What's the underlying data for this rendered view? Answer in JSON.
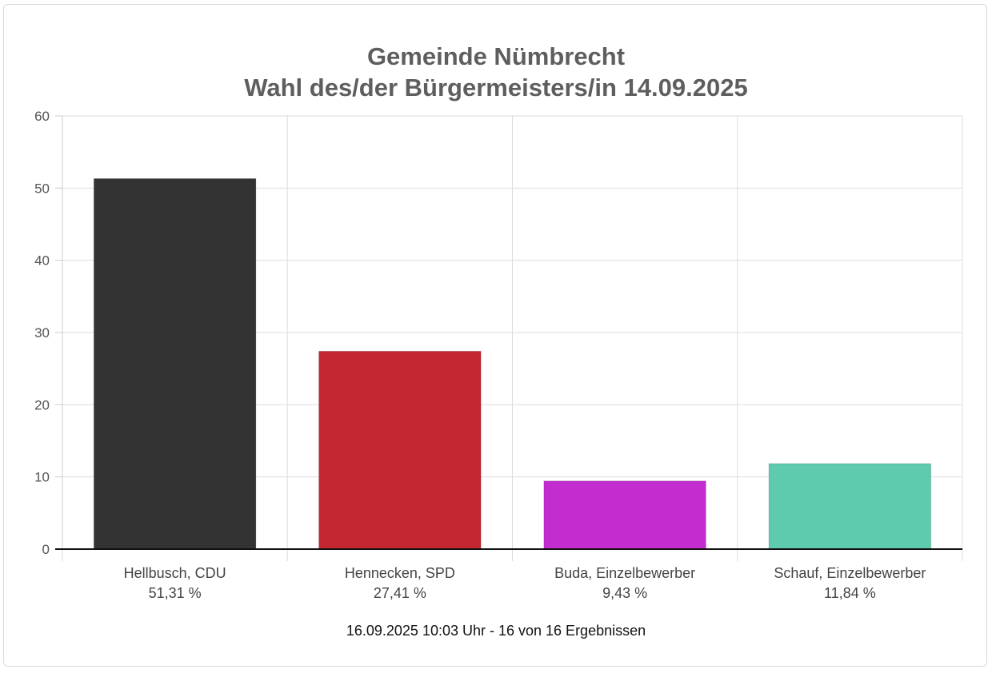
{
  "chart_data": {
    "type": "bar",
    "title": "Gemeinde Nümbrecht",
    "subtitle": "Wahl des/der Bürgermeisters/in 14.09.2025",
    "categories": [
      "Hellbusch, CDU",
      "Hennecken, SPD",
      "Buda, Einzelbewerber",
      "Schauf, Einzelbewerber"
    ],
    "value_labels": [
      "51,31 %",
      "27,41 %",
      "9,43 %",
      "11,84 %"
    ],
    "values": [
      51.31,
      27.41,
      9.43,
      11.84
    ],
    "colors": [
      "#333333",
      "#c32731",
      "#c32dd0",
      "#5ecaae"
    ],
    "ylim": [
      0,
      60
    ],
    "yticks": [
      0,
      10,
      20,
      30,
      40,
      50,
      60
    ],
    "grid": true,
    "legend": "none",
    "footer": "16.09.2025 10:03 Uhr - 16 von 16 Ergebnissen"
  }
}
